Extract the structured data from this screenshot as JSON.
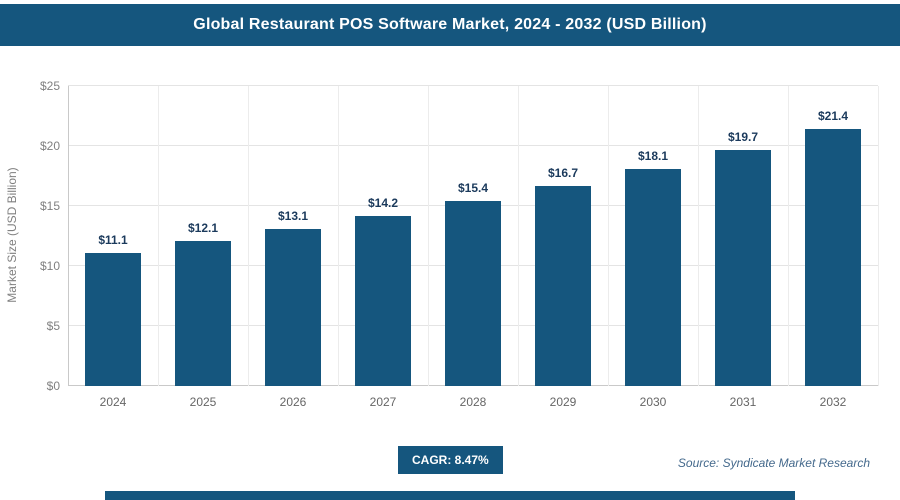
{
  "header": {
    "title": "Global Restaurant POS Software Market, 2024 - 2032 (USD Billion)"
  },
  "chart_data": {
    "type": "bar",
    "title": "Global Restaurant POS Software Market, 2024 - 2032 (USD Billion)",
    "categories": [
      "2024",
      "2025",
      "2026",
      "2027",
      "2028",
      "2029",
      "2030",
      "2031",
      "2032"
    ],
    "values": [
      11.1,
      12.1,
      13.1,
      14.2,
      15.4,
      16.7,
      18.1,
      19.7,
      21.4
    ],
    "value_labels": [
      "$11.1",
      "$12.1",
      "$13.1",
      "$14.2",
      "$15.4",
      "$16.7",
      "$18.1",
      "$19.7",
      "$21.4"
    ],
    "xlabel": "",
    "ylabel": "Market Size (USD Billion)",
    "ylim": [
      0,
      25
    ],
    "ytick_labels": [
      "$0",
      "$5",
      "$10",
      "$15",
      "$20",
      "$25"
    ],
    "grid": true,
    "legend": "none",
    "bar_color": "#15567e"
  },
  "footer": {
    "cagr_label": "CAGR: 8.47%",
    "source": "Source: Syndicate Market Research"
  },
  "colors": {
    "accent": "#15567e",
    "value_label": "#1b3a5c",
    "tick_label": "#808080"
  }
}
